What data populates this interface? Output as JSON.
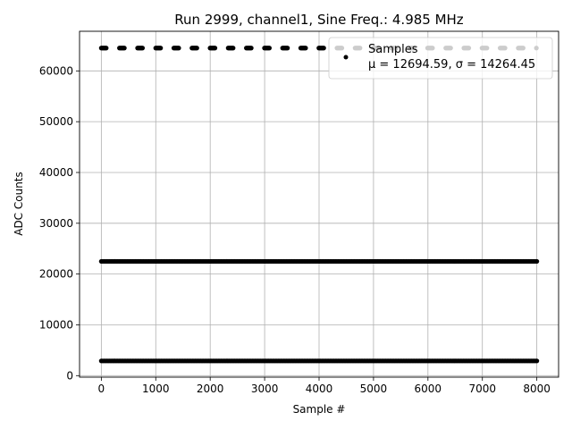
{
  "chart_data": {
    "type": "scatter",
    "title": "Run 2999, channel1, Sine Freq.: 4.985 MHz",
    "xlabel": "Sample #",
    "ylabel": "ADC Counts",
    "xlim": [
      -400,
      8400
    ],
    "ylim": [
      -300,
      67800
    ],
    "xticks": [
      0,
      1000,
      2000,
      3000,
      4000,
      5000,
      6000,
      7000,
      8000
    ],
    "yticks": [
      0,
      10000,
      20000,
      30000,
      40000,
      50000,
      60000
    ],
    "grid": true,
    "marker_color": "#000000",
    "legend": {
      "position": "top-right",
      "label": "Samples",
      "stats": "μ = 12694.59, σ = 14264.45"
    },
    "series": [
      {
        "name": "Samples",
        "levels": [
          {
            "y": 2900,
            "x_range": [
              0,
              8000
            ],
            "pattern": "continuous"
          },
          {
            "y": 22500,
            "x_range": [
              0,
              8000
            ],
            "pattern": "continuous"
          },
          {
            "y": 64500,
            "x_range": [
              0,
              8000
            ],
            "pattern": "periodic clusters",
            "cluster_period": 333
          }
        ]
      }
    ]
  }
}
